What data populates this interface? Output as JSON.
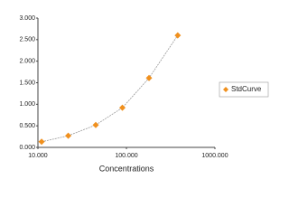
{
  "chart_data": {
    "type": "scatter",
    "x_label": "Concentrations",
    "xscale": "log",
    "xlim": [
      10,
      1000
    ],
    "xticks": [
      {
        "value": 10,
        "label": "10.000"
      },
      {
        "value": 100,
        "label": "100.000"
      },
      {
        "value": 1000,
        "label": "1000.000"
      }
    ],
    "ylim": [
      0,
      3
    ],
    "yticks": [
      {
        "value": 0,
        "label": "0.000"
      },
      {
        "value": 0.5,
        "label": "0.500"
      },
      {
        "value": 1,
        "label": "1.000"
      },
      {
        "value": 1.5,
        "label": "1.500"
      },
      {
        "value": 2,
        "label": "2.000"
      },
      {
        "value": 2.5,
        "label": "2.500"
      },
      {
        "value": 3,
        "label": "3.000"
      }
    ],
    "series": [
      {
        "name": "StdCurve",
        "color": "#f0901e",
        "x": [
          11,
          22,
          45,
          90,
          180,
          380
        ],
        "values": [
          0.13,
          0.27,
          0.52,
          0.92,
          1.61,
          2.6
        ]
      }
    ],
    "legend": "right",
    "trendline": true
  }
}
